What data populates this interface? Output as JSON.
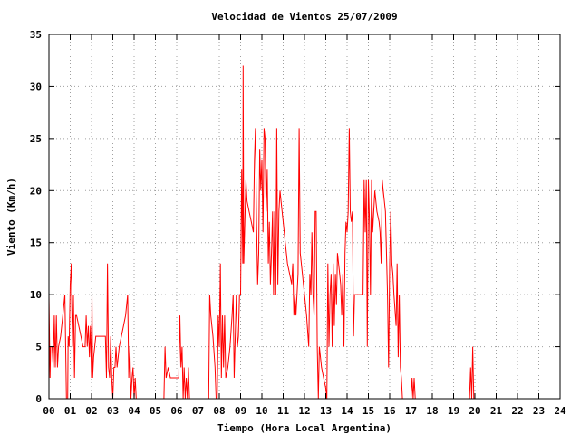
{
  "chart_data": {
    "type": "line",
    "title": "Velocidad de Vientos 25/07/2009",
    "xlabel": "Tiempo (Hora Local Argentina)",
    "ylabel": "Viento (Km/h)",
    "xlim": [
      0,
      24
    ],
    "ylim": [
      0,
      35
    ],
    "x_ticks": [
      "00",
      "01",
      "02",
      "03",
      "04",
      "05",
      "06",
      "07",
      "08",
      "09",
      "10",
      "11",
      "12",
      "13",
      "14",
      "15",
      "16",
      "17",
      "18",
      "19",
      "20",
      "21",
      "22",
      "23",
      "24"
    ],
    "y_ticks": [
      "0",
      "5",
      "10",
      "15",
      "20",
      "25",
      "30",
      "35"
    ],
    "grid": true,
    "series": [
      {
        "color": "#ff0000",
        "points": [
          [
            0.0,
            10
          ],
          [
            0.05,
            2
          ],
          [
            0.08,
            5
          ],
          [
            0.15,
            5
          ],
          [
            0.2,
            3
          ],
          [
            0.25,
            8
          ],
          [
            0.3,
            3
          ],
          [
            0.35,
            8
          ],
          [
            0.4,
            3
          ],
          [
            0.45,
            5
          ],
          [
            0.55,
            6
          ],
          [
            0.65,
            8
          ],
          [
            0.75,
            10
          ],
          [
            0.8,
            3
          ],
          [
            0.82,
            0
          ],
          [
            0.88,
            0
          ],
          [
            0.9,
            6
          ],
          [
            0.95,
            5
          ],
          [
            1.0,
            11
          ],
          [
            1.05,
            13
          ],
          [
            1.1,
            5
          ],
          [
            1.15,
            10
          ],
          [
            1.2,
            2
          ],
          [
            1.25,
            8
          ],
          [
            1.3,
            8
          ],
          [
            1.4,
            7
          ],
          [
            1.5,
            6
          ],
          [
            1.6,
            5
          ],
          [
            1.7,
            5
          ],
          [
            1.75,
            8
          ],
          [
            1.8,
            5
          ],
          [
            1.85,
            7
          ],
          [
            1.9,
            4
          ],
          [
            1.95,
            7
          ],
          [
            2.0,
            2
          ],
          [
            2.02,
            10
          ],
          [
            2.05,
            2
          ],
          [
            2.1,
            4
          ],
          [
            2.2,
            6
          ],
          [
            2.3,
            6
          ],
          [
            2.4,
            6
          ],
          [
            2.5,
            6
          ],
          [
            2.6,
            6
          ],
          [
            2.65,
            6
          ],
          [
            2.7,
            2
          ],
          [
            2.75,
            13
          ],
          [
            2.8,
            3
          ],
          [
            2.85,
            2
          ],
          [
            2.9,
            6
          ],
          [
            2.95,
            2
          ],
          [
            3.0,
            0
          ],
          [
            3.05,
            3
          ],
          [
            3.1,
            3
          ],
          [
            3.15,
            5
          ],
          [
            3.2,
            3
          ],
          [
            3.3,
            5
          ],
          [
            3.5,
            7
          ],
          [
            3.6,
            8
          ],
          [
            3.7,
            10
          ],
          [
            3.75,
            2
          ],
          [
            3.8,
            5
          ],
          [
            3.85,
            0
          ],
          [
            3.9,
            2
          ],
          [
            3.95,
            3
          ],
          [
            4.0,
            0
          ],
          [
            4.05,
            2
          ],
          [
            4.1,
            0
          ],
          [
            4.15,
            0
          ],
          [
            5.4,
            0
          ],
          [
            5.45,
            5
          ],
          [
            5.5,
            2
          ],
          [
            5.6,
            3
          ],
          [
            5.7,
            2
          ],
          [
            5.8,
            2
          ],
          [
            6.0,
            2
          ],
          [
            6.1,
            2
          ],
          [
            6.15,
            8
          ],
          [
            6.2,
            3
          ],
          [
            6.25,
            5
          ],
          [
            6.3,
            0
          ],
          [
            6.35,
            3
          ],
          [
            6.4,
            0
          ],
          [
            6.45,
            2
          ],
          [
            6.5,
            0
          ],
          [
            6.55,
            3
          ],
          [
            6.6,
            0
          ],
          [
            6.65,
            0
          ],
          [
            7.5,
            0
          ],
          [
            7.55,
            10
          ],
          [
            7.6,
            8
          ],
          [
            7.7,
            6
          ],
          [
            7.8,
            3
          ],
          [
            7.85,
            0
          ],
          [
            7.9,
            0
          ],
          [
            7.95,
            8
          ],
          [
            8.0,
            5
          ],
          [
            8.05,
            13
          ],
          [
            8.1,
            2
          ],
          [
            8.15,
            8
          ],
          [
            8.2,
            3
          ],
          [
            8.25,
            8
          ],
          [
            8.3,
            2
          ],
          [
            8.4,
            3
          ],
          [
            8.5,
            5
          ],
          [
            8.6,
            8
          ],
          [
            8.65,
            10
          ],
          [
            8.7,
            2
          ],
          [
            8.75,
            6
          ],
          [
            8.8,
            10
          ],
          [
            8.85,
            5
          ],
          [
            8.9,
            6
          ],
          [
            8.95,
            10
          ],
          [
            9.0,
            10
          ],
          [
            9.05,
            22
          ],
          [
            9.1,
            13
          ],
          [
            9.12,
            32
          ],
          [
            9.15,
            13
          ],
          [
            9.2,
            17
          ],
          [
            9.25,
            21
          ],
          [
            9.3,
            19
          ],
          [
            9.4,
            18
          ],
          [
            9.5,
            17
          ],
          [
            9.6,
            16
          ],
          [
            9.65,
            23
          ],
          [
            9.7,
            26
          ],
          [
            9.75,
            17
          ],
          [
            9.8,
            11
          ],
          [
            9.85,
            14
          ],
          [
            9.9,
            24
          ],
          [
            9.95,
            20
          ],
          [
            10.0,
            23
          ],
          [
            10.05,
            16
          ],
          [
            10.1,
            26
          ],
          [
            10.15,
            25
          ],
          [
            10.2,
            18
          ],
          [
            10.25,
            22
          ],
          [
            10.3,
            13
          ],
          [
            10.35,
            17
          ],
          [
            10.4,
            11
          ],
          [
            10.45,
            14
          ],
          [
            10.5,
            18
          ],
          [
            10.55,
            10
          ],
          [
            10.6,
            18
          ],
          [
            10.65,
            10
          ],
          [
            10.7,
            26
          ],
          [
            10.75,
            11
          ],
          [
            10.8,
            18
          ],
          [
            10.85,
            20
          ],
          [
            10.9,
            19
          ],
          [
            11.0,
            17
          ],
          [
            11.1,
            15
          ],
          [
            11.2,
            13
          ],
          [
            11.3,
            12
          ],
          [
            11.4,
            11
          ],
          [
            11.45,
            13
          ],
          [
            11.5,
            8
          ],
          [
            11.55,
            10
          ],
          [
            11.6,
            8
          ],
          [
            11.7,
            12
          ],
          [
            11.75,
            26
          ],
          [
            11.8,
            14
          ],
          [
            11.9,
            12
          ],
          [
            12.0,
            10
          ],
          [
            12.1,
            8
          ],
          [
            12.2,
            5
          ],
          [
            12.25,
            12
          ],
          [
            12.3,
            10
          ],
          [
            12.35,
            16
          ],
          [
            12.4,
            10
          ],
          [
            12.45,
            8
          ],
          [
            12.5,
            18
          ],
          [
            12.55,
            18
          ],
          [
            12.6,
            5
          ],
          [
            12.65,
            0
          ],
          [
            12.7,
            5
          ],
          [
            12.75,
            4
          ],
          [
            12.8,
            3
          ],
          [
            12.9,
            2
          ],
          [
            13.0,
            1
          ],
          [
            13.05,
            0
          ],
          [
            13.1,
            13
          ],
          [
            13.15,
            5
          ],
          [
            13.2,
            10
          ],
          [
            13.25,
            12
          ],
          [
            13.3,
            5
          ],
          [
            13.35,
            13
          ],
          [
            13.4,
            7
          ],
          [
            13.45,
            12
          ],
          [
            13.5,
            9
          ],
          [
            13.55,
            14
          ],
          [
            13.6,
            13
          ],
          [
            13.65,
            12
          ],
          [
            13.7,
            11
          ],
          [
            13.75,
            8
          ],
          [
            13.8,
            12
          ],
          [
            13.85,
            5
          ],
          [
            13.9,
            14
          ],
          [
            13.95,
            17
          ],
          [
            14.0,
            16
          ],
          [
            14.05,
            18
          ],
          [
            14.1,
            26
          ],
          [
            14.15,
            18
          ],
          [
            14.2,
            17
          ],
          [
            14.25,
            18
          ],
          [
            14.3,
            6
          ],
          [
            14.35,
            10
          ],
          [
            14.4,
            10
          ],
          [
            14.5,
            10
          ],
          [
            14.6,
            10
          ],
          [
            14.7,
            10
          ],
          [
            14.75,
            10
          ],
          [
            14.8,
            21
          ],
          [
            14.85,
            16
          ],
          [
            14.9,
            21
          ],
          [
            14.95,
            5
          ],
          [
            15.0,
            21
          ],
          [
            15.05,
            17
          ],
          [
            15.1,
            10
          ],
          [
            15.15,
            21
          ],
          [
            15.2,
            16
          ],
          [
            15.3,
            20
          ],
          [
            15.4,
            18
          ],
          [
            15.5,
            17
          ],
          [
            15.55,
            16
          ],
          [
            15.6,
            13
          ],
          [
            15.65,
            21
          ],
          [
            15.7,
            20
          ],
          [
            15.8,
            18
          ],
          [
            15.9,
            10
          ],
          [
            15.95,
            3
          ],
          [
            16.0,
            13
          ],
          [
            16.05,
            18
          ],
          [
            16.1,
            13
          ],
          [
            16.15,
            12
          ],
          [
            16.2,
            10
          ],
          [
            16.3,
            7
          ],
          [
            16.35,
            13
          ],
          [
            16.4,
            4
          ],
          [
            16.45,
            10
          ],
          [
            16.5,
            3
          ],
          [
            16.55,
            2
          ],
          [
            16.6,
            0
          ],
          [
            16.65,
            0
          ],
          [
            17.0,
            0
          ],
          [
            17.05,
            2
          ],
          [
            17.1,
            0
          ],
          [
            17.15,
            2
          ],
          [
            17.2,
            0
          ],
          [
            19.75,
            0
          ],
          [
            19.8,
            3
          ],
          [
            19.85,
            0
          ],
          [
            19.9,
            5
          ],
          [
            19.95,
            0
          ],
          [
            20.0,
            0
          ]
        ]
      }
    ]
  }
}
